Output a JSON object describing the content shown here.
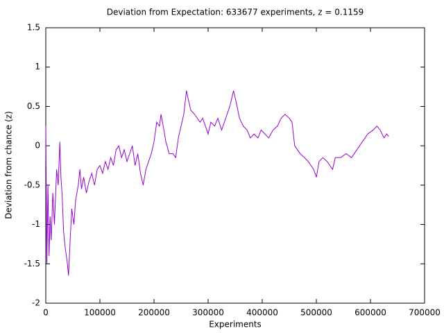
{
  "chart_data": {
    "type": "line",
    "title": "Deviation from Expectation: 633677 experiments, z = 0.1159",
    "x_label": "Experiments",
    "y_label": "Deviation from chance (z)",
    "xlim": [
      0,
      700000
    ],
    "ylim": [
      -2,
      1.5
    ],
    "xticks": [
      0,
      100000,
      200000,
      300000,
      400000,
      500000,
      600000,
      700000
    ],
    "yticks": [
      -2,
      -1.5,
      -1,
      -0.5,
      0,
      0.5,
      1,
      1.5
    ],
    "grid": false,
    "series": [
      {
        "color": "#9400d3",
        "x": [
          0,
          2000,
          4000,
          6000,
          8000,
          10000,
          13000,
          16000,
          20000,
          23000,
          26000,
          28000,
          30000,
          33000,
          36000,
          40000,
          42000,
          45000,
          48000,
          52000,
          55000,
          60000,
          63000,
          66000,
          70000,
          75000,
          80000,
          85000,
          90000,
          95000,
          100000,
          105000,
          110000,
          115000,
          120000,
          125000,
          130000,
          135000,
          140000,
          145000,
          150000,
          155000,
          160000,
          165000,
          170000,
          175000,
          180000,
          185000,
          190000,
          195000,
          200000,
          205000,
          210000,
          213000,
          217000,
          222000,
          228000,
          235000,
          240000,
          245000,
          250000,
          255000,
          260000,
          263000,
          268000,
          275000,
          285000,
          290000,
          295000,
          300000,
          305000,
          312000,
          318000,
          325000,
          330000,
          340000,
          347000,
          352000,
          358000,
          365000,
          372000,
          378000,
          385000,
          392000,
          398000,
          405000,
          412000,
          420000,
          428000,
          435000,
          442000,
          450000,
          455000,
          460000,
          465000,
          470000,
          478000,
          485000,
          490000,
          495000,
          500000,
          505000,
          512000,
          520000,
          525000,
          530000,
          535000,
          545000,
          555000,
          565000,
          575000,
          585000,
          595000,
          605000,
          612000,
          618000,
          625000,
          630000,
          633677
        ],
        "values": [
          0.25,
          -1.5,
          -0.5,
          -1.4,
          -0.9,
          -1.2,
          -0.6,
          -1.0,
          -0.3,
          -0.5,
          0.05,
          -0.4,
          -0.6,
          -1.1,
          -1.3,
          -1.5,
          -1.65,
          -1.2,
          -0.8,
          -1.0,
          -0.7,
          -0.5,
          -0.3,
          -0.55,
          -0.4,
          -0.6,
          -0.45,
          -0.35,
          -0.5,
          -0.3,
          -0.25,
          -0.35,
          -0.2,
          -0.3,
          -0.15,
          -0.25,
          -0.05,
          0.0,
          -0.15,
          -0.05,
          -0.2,
          -0.1,
          0.0,
          -0.25,
          -0.1,
          -0.35,
          -0.5,
          -0.3,
          -0.2,
          -0.1,
          0.05,
          0.3,
          0.25,
          0.4,
          0.25,
          0.05,
          -0.1,
          -0.1,
          -0.15,
          0.1,
          0.25,
          0.4,
          0.7,
          0.6,
          0.45,
          0.4,
          0.3,
          0.35,
          0.25,
          0.15,
          0.3,
          0.25,
          0.35,
          0.2,
          0.3,
          0.5,
          0.7,
          0.55,
          0.35,
          0.25,
          0.2,
          0.1,
          0.15,
          0.1,
          0.2,
          0.15,
          0.1,
          0.2,
          0.25,
          0.35,
          0.4,
          0.35,
          0.3,
          0.0,
          -0.05,
          -0.1,
          -0.15,
          -0.2,
          -0.25,
          -0.3,
          -0.4,
          -0.2,
          -0.15,
          -0.2,
          -0.25,
          -0.3,
          -0.15,
          -0.15,
          -0.1,
          -0.15,
          -0.05,
          0.05,
          0.15,
          0.2,
          0.25,
          0.2,
          0.1,
          0.15,
          0.12
        ]
      }
    ]
  }
}
